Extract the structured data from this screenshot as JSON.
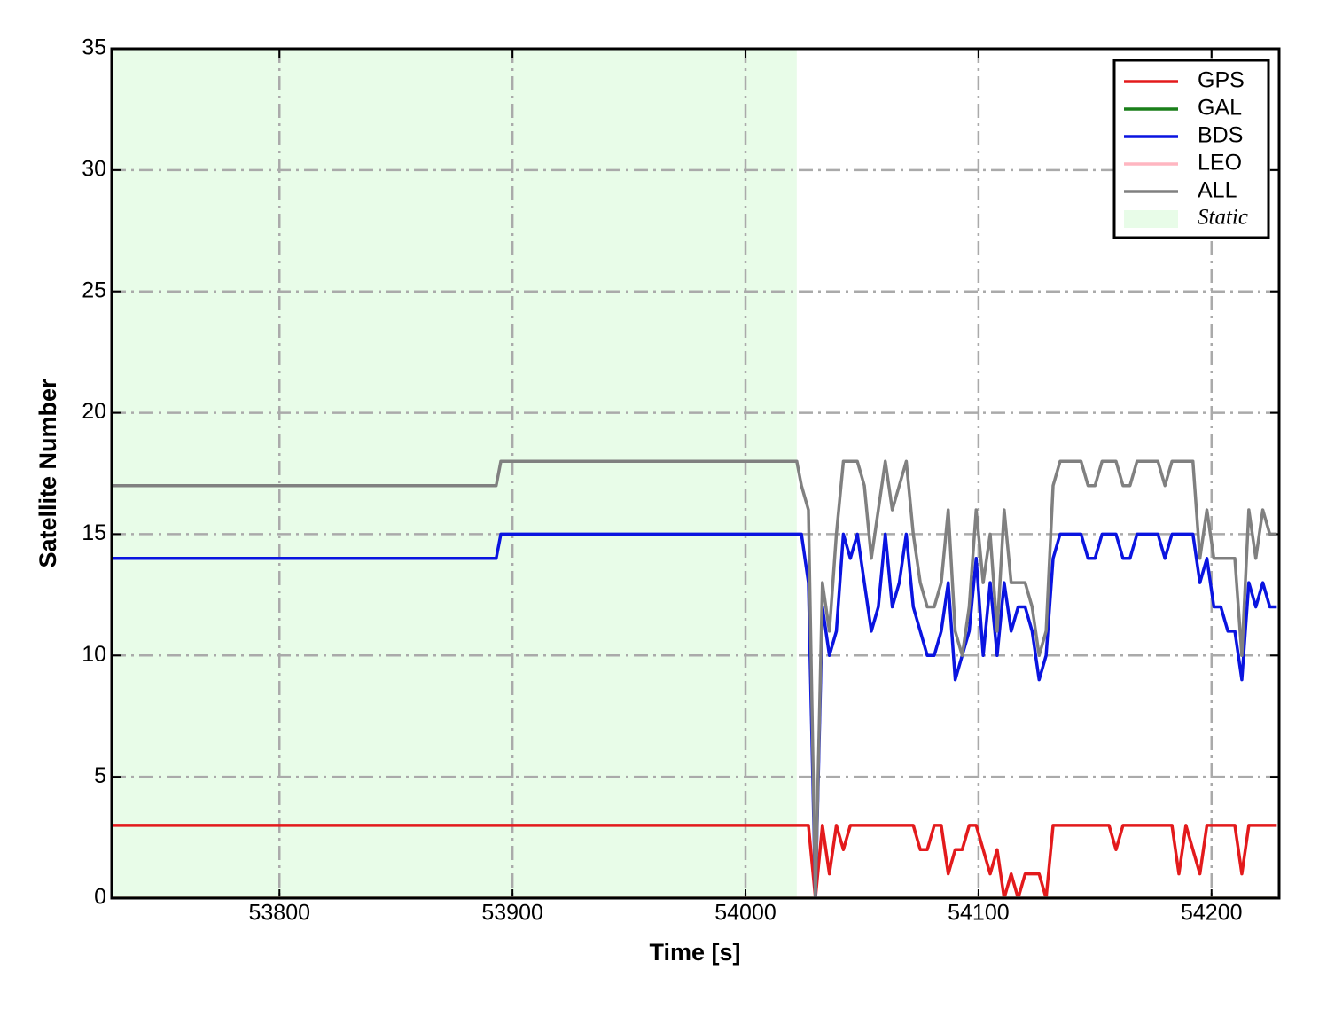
{
  "chart_data": {
    "type": "line",
    "xlabel": "Time [s]",
    "ylabel": "Satellite Number",
    "xlim": [
      53728,
      54229
    ],
    "ylim": [
      0,
      35
    ],
    "xticks": [
      53800,
      53900,
      54000,
      54100,
      54200
    ],
    "yticks": [
      0,
      5,
      10,
      15,
      20,
      25,
      30,
      35
    ],
    "grid": true,
    "legend": "upper right",
    "shaded_region": {
      "label": "Static",
      "xlim": [
        53728,
        54022
      ],
      "color": "#e8fce8"
    },
    "x": [
      53728,
      53893,
      53895,
      54022,
      54024,
      54027,
      54030,
      54033,
      54036,
      54039,
      54042,
      54045,
      54048,
      54051,
      54054,
      54057,
      54060,
      54063,
      54066,
      54069,
      54072,
      54075,
      54078,
      54081,
      54084,
      54087,
      54090,
      54093,
      54096,
      54099,
      54102,
      54105,
      54108,
      54111,
      54114,
      54117,
      54120,
      54123,
      54126,
      54129,
      54132,
      54135,
      54138,
      54141,
      54144,
      54147,
      54150,
      54153,
      54156,
      54159,
      54162,
      54165,
      54168,
      54171,
      54174,
      54177,
      54180,
      54183,
      54186,
      54189,
      54192,
      54195,
      54198,
      54201,
      54204,
      54207,
      54210,
      54213,
      54216,
      54219,
      54222,
      54225,
      54228
    ],
    "series": [
      {
        "name": "GPS",
        "color": "#e31a1c",
        "values": [
          3,
          3,
          3,
          3,
          3,
          3,
          0,
          3,
          1,
          3,
          2,
          3,
          3,
          3,
          3,
          3,
          3,
          3,
          3,
          3,
          3,
          2,
          2,
          3,
          3,
          1,
          2,
          2,
          3,
          3,
          2,
          1,
          2,
          0,
          1,
          0,
          1,
          1,
          1,
          0,
          3,
          3,
          3,
          3,
          3,
          3,
          3,
          3,
          3,
          2,
          3,
          3,
          3,
          3,
          3,
          3,
          3,
          3,
          1,
          3,
          2,
          1,
          3,
          3,
          3,
          3,
          3,
          1,
          3,
          3,
          3,
          3,
          3
        ]
      },
      {
        "name": "GAL",
        "color": "#1a7f1a",
        "values": [
          0,
          0,
          0,
          0,
          0,
          0,
          0,
          0,
          0,
          0,
          0,
          0,
          0,
          0,
          0,
          0,
          0,
          0,
          0,
          0,
          0,
          0,
          0,
          0,
          0,
          0,
          0,
          0,
          0,
          0,
          0,
          0,
          0,
          0,
          0,
          0,
          0,
          0,
          0,
          0,
          0,
          0,
          0,
          0,
          0,
          0,
          0,
          0,
          0,
          0,
          0,
          0,
          0,
          0,
          0,
          0,
          0,
          0,
          0,
          0,
          0,
          0,
          0,
          0,
          0,
          0,
          0,
          0,
          0,
          0,
          0,
          0,
          0
        ]
      },
      {
        "name": "BDS",
        "color": "#0a14e0",
        "values": [
          14,
          14,
          15,
          15,
          15,
          13,
          0,
          12,
          10,
          11,
          15,
          14,
          15,
          13,
          11,
          12,
          15,
          12,
          13,
          15,
          12,
          11,
          10,
          10,
          11,
          13,
          9,
          10,
          11,
          14,
          10,
          13,
          10,
          13,
          11,
          12,
          12,
          11,
          9,
          10,
          14,
          15,
          15,
          15,
          15,
          14,
          14,
          15,
          15,
          15,
          14,
          14,
          15,
          15,
          15,
          15,
          14,
          15,
          15,
          15,
          15,
          13,
          14,
          12,
          12,
          11,
          11,
          9,
          13,
          12,
          13,
          12,
          12
        ]
      },
      {
        "name": "LEO",
        "color": "#ffb6c1",
        "values": [
          0,
          0,
          0,
          0,
          0,
          0,
          0,
          0,
          0,
          0,
          0,
          0,
          0,
          0,
          0,
          0,
          0,
          0,
          0,
          0,
          0,
          0,
          0,
          0,
          0,
          0,
          0,
          0,
          0,
          0,
          0,
          0,
          0,
          0,
          0,
          0,
          0,
          0,
          0,
          0,
          0,
          0,
          0,
          0,
          0,
          0,
          0,
          0,
          0,
          0,
          0,
          0,
          0,
          0,
          0,
          0,
          0,
          0,
          0,
          0,
          0,
          0,
          0,
          0,
          0,
          0,
          0,
          0,
          0,
          0,
          0,
          0,
          0
        ]
      },
      {
        "name": "ALL",
        "color": "#808080",
        "values": [
          17,
          17,
          18,
          18,
          17,
          16,
          0,
          13,
          11,
          15,
          18,
          18,
          18,
          17,
          14,
          16,
          18,
          16,
          17,
          18,
          15,
          13,
          12,
          12,
          13,
          16,
          11,
          10,
          12,
          16,
          13,
          15,
          11,
          16,
          13,
          13,
          13,
          12,
          10,
          11,
          17,
          18,
          18,
          18,
          18,
          17,
          17,
          18,
          18,
          18,
          17,
          17,
          18,
          18,
          18,
          18,
          17,
          18,
          18,
          18,
          18,
          14,
          16,
          14,
          14,
          14,
          14,
          10,
          16,
          14,
          16,
          15,
          15
        ]
      }
    ]
  }
}
